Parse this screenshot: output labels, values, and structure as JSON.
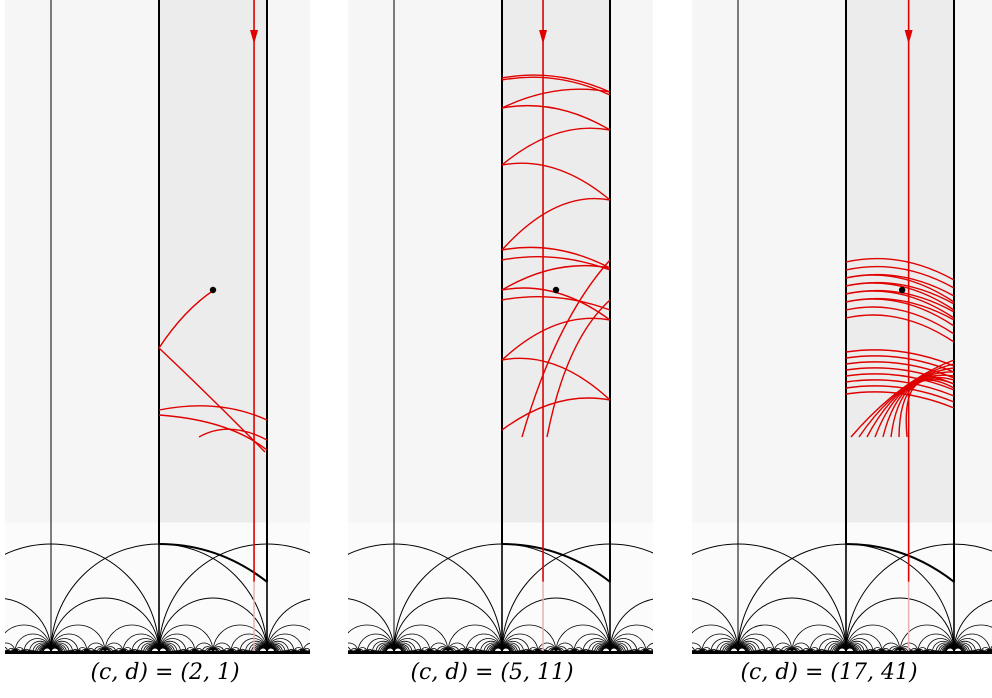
{
  "panels": [
    {
      "caption": "(c, d) = (2, 1)",
      "trajectory": "short"
    },
    {
      "caption": "(c, d) = (5, 11)",
      "trajectory": "medium"
    },
    {
      "caption": "(c, d) = (17, 41)",
      "trajectory": "long"
    }
  ],
  "colors": {
    "geodesic": "#e00000",
    "strip_dark": "#ececec",
    "strip_light": "#f6f6f6",
    "line": "#000000",
    "point": "#000000"
  }
}
